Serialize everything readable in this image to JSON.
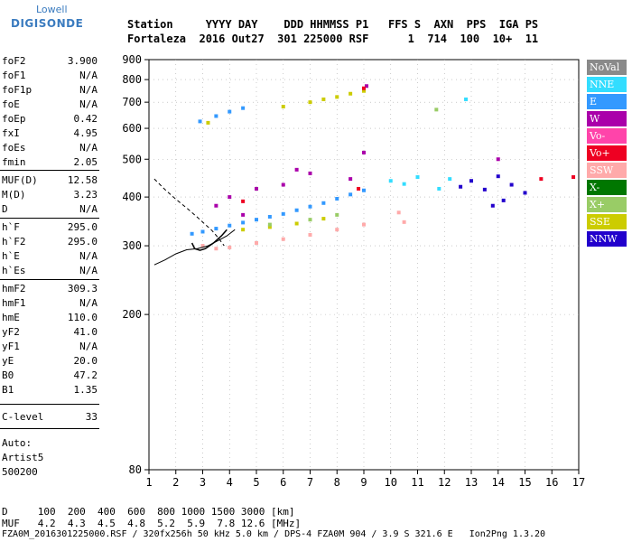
{
  "logo": {
    "top": "Lowell",
    "bottom": "DIGISONDE"
  },
  "header": {
    "line1": "Station     YYYY DAY    DDD HHMMSS P1   FFS S  AXN  PPS  IGA PS",
    "line2": "Fortaleza  2016 Out27  301 225000 RSF      1  714  100  10+  11"
  },
  "params": [
    {
      "k": "foF2",
      "v": "3.900"
    },
    {
      "k": "foF1",
      "v": "N/A"
    },
    {
      "k": "foF1p",
      "v": "N/A"
    },
    {
      "k": "foE",
      "v": "N/A"
    },
    {
      "k": "foEp",
      "v": "0.42"
    },
    {
      "k": "fxI",
      "v": "4.95"
    },
    {
      "k": "foEs",
      "v": "N/A"
    },
    {
      "k": "fmin",
      "v": "2.05"
    },
    {
      "k": "MUF(D)",
      "v": "12.58"
    },
    {
      "k": "M(D)",
      "v": "3.23"
    },
    {
      "k": "D",
      "v": "N/A"
    },
    {
      "k": "h`F",
      "v": "295.0"
    },
    {
      "k": "h`F2",
      "v": "295.0"
    },
    {
      "k": "h`E",
      "v": "N/A"
    },
    {
      "k": "h`Es",
      "v": "N/A"
    },
    {
      "k": "hmF2",
      "v": "309.3"
    },
    {
      "k": "hmF1",
      "v": "N/A"
    },
    {
      "k": "hmE",
      "v": "110.0"
    },
    {
      "k": "yF2",
      "v": "41.0"
    },
    {
      "k": "yF1",
      "v": "N/A"
    },
    {
      "k": "yE",
      "v": "20.0"
    },
    {
      "k": "B0",
      "v": "47.2"
    },
    {
      "k": "B1",
      "v": "1.35"
    },
    {
      "k": "C-level",
      "v": "33"
    }
  ],
  "auto": {
    "l1": "Auto:",
    "l2": "Artist5",
    "l3": "500200"
  },
  "legend": [
    {
      "label": "NoVal",
      "color": "#8a8a8a"
    },
    {
      "label": "NNE",
      "color": "#33ddff"
    },
    {
      "label": "E",
      "color": "#3399ff"
    },
    {
      "label": "W",
      "color": "#aa00aa"
    },
    {
      "label": "Vo-",
      "color": "#ff44aa"
    },
    {
      "label": "Vo+",
      "color": "#ee0022"
    },
    {
      "label": "SSW",
      "color": "#ffaaaa"
    },
    {
      "label": "X-",
      "color": "#007700"
    },
    {
      "label": "X+",
      "color": "#99cc66"
    },
    {
      "label": "SSE",
      "color": "#cccc00"
    },
    {
      "label": "NNW",
      "color": "#2200cc"
    }
  ],
  "footer": {
    "d_row": "D     100  200  400  600  800 1000 1500 3000 [km]",
    "muf_row": "MUF   4.2  4.3  4.5  4.8  5.2  5.9  7.8 12.6 [MHz]",
    "file_row": "FZA0M_2016301225000.RSF / 320fx256h 50 kHz 5.0 km / DPS-4 FZA0M 904 / 3.9 S 321.6 E   Ion2Png 1.3.20"
  },
  "chart_data": {
    "type": "scatter",
    "x_ticks": [
      "1",
      "2",
      "3",
      "4",
      "5",
      "6",
      "7",
      "8",
      "9",
      "10",
      "11",
      "12",
      "13",
      "14",
      "15",
      "16",
      "17"
    ],
    "y_ticks": [
      "80",
      "200",
      "300",
      "400",
      "500",
      "600",
      "700",
      "800",
      "900"
    ],
    "xlim": [
      1,
      17
    ],
    "ylim": [
      80,
      900
    ],
    "y_scale": "log",
    "grid": true,
    "series": [
      {
        "name": "E",
        "color": "#3399ff",
        "points": [
          [
            2.6,
            322
          ],
          [
            3.0,
            326
          ],
          [
            3.5,
            332
          ],
          [
            4.0,
            338
          ],
          [
            4.5,
            344
          ],
          [
            5.0,
            350
          ],
          [
            5.5,
            356
          ],
          [
            6.0,
            362
          ],
          [
            6.5,
            370
          ],
          [
            7.0,
            378
          ],
          [
            7.5,
            386
          ],
          [
            8.0,
            396
          ],
          [
            8.5,
            406
          ],
          [
            9.0,
            416
          ],
          [
            2.9,
            625
          ],
          [
            3.5,
            645
          ],
          [
            4.0,
            662
          ],
          [
            4.5,
            676
          ]
        ]
      },
      {
        "name": "SSE",
        "color": "#cccc00",
        "points": [
          [
            3.2,
            620
          ],
          [
            6.0,
            682
          ],
          [
            7.0,
            700
          ],
          [
            7.5,
            712
          ],
          [
            8.0,
            722
          ],
          [
            8.5,
            736
          ],
          [
            9.0,
            748
          ],
          [
            4.5,
            330
          ],
          [
            5.5,
            335
          ],
          [
            6.5,
            342
          ],
          [
            7.5,
            352
          ]
        ]
      },
      {
        "name": "W",
        "color": "#aa00aa",
        "points": [
          [
            3.5,
            380
          ],
          [
            4.0,
            400
          ],
          [
            4.5,
            360
          ],
          [
            5.0,
            420
          ],
          [
            6.0,
            430
          ],
          [
            6.5,
            470
          ],
          [
            7.0,
            460
          ],
          [
            8.5,
            445
          ],
          [
            9.0,
            520
          ],
          [
            9.1,
            770
          ],
          [
            14.0,
            500
          ]
        ]
      },
      {
        "name": "SSW",
        "color": "#ffaaaa",
        "points": [
          [
            3.0,
            300
          ],
          [
            3.5,
            295
          ],
          [
            4.0,
            297
          ],
          [
            5.0,
            305
          ],
          [
            6.0,
            312
          ],
          [
            7.0,
            320
          ],
          [
            8.0,
            330
          ],
          [
            9.0,
            340
          ],
          [
            10.3,
            365
          ],
          [
            10.5,
            345
          ]
        ]
      },
      {
        "name": "NNW",
        "color": "#2200cc",
        "points": [
          [
            12.6,
            425
          ],
          [
            13.0,
            440
          ],
          [
            13.5,
            418
          ],
          [
            14.0,
            452
          ],
          [
            14.5,
            430
          ],
          [
            15.0,
            410
          ],
          [
            13.8,
            380
          ],
          [
            14.2,
            392
          ]
        ]
      },
      {
        "name": "NNE",
        "color": "#33ddff",
        "points": [
          [
            10.0,
            440
          ],
          [
            10.5,
            432
          ],
          [
            11.0,
            450
          ],
          [
            11.8,
            420
          ],
          [
            12.2,
            445
          ],
          [
            12.8,
            712
          ]
        ]
      },
      {
        "name": "Vo+",
        "color": "#ee0022",
        "points": [
          [
            4.5,
            390
          ],
          [
            8.8,
            420
          ],
          [
            9.0,
            760
          ],
          [
            16.8,
            450
          ],
          [
            15.6,
            445
          ]
        ]
      },
      {
        "name": "X+",
        "color": "#99cc66",
        "points": [
          [
            5.5,
            340
          ],
          [
            7.0,
            350
          ],
          [
            8.0,
            360
          ],
          [
            11.7,
            670
          ]
        ]
      }
    ],
    "profile_upper": [
      [
        1.2,
        445
      ],
      [
        1.6,
        418
      ],
      [
        2.0,
        395
      ],
      [
        2.4,
        375
      ],
      [
        2.8,
        355
      ],
      [
        3.1,
        340
      ],
      [
        3.35,
        328
      ],
      [
        3.6,
        313
      ],
      [
        3.8,
        300
      ]
    ],
    "profile_lower": [
      [
        1.2,
        268
      ],
      [
        1.6,
        276
      ],
      [
        2.0,
        286
      ],
      [
        2.4,
        293
      ],
      [
        2.8,
        295
      ],
      [
        3.2,
        300
      ],
      [
        3.6,
        310
      ],
      [
        3.9,
        318
      ],
      [
        4.2,
        330
      ]
    ],
    "trace_curve": [
      [
        2.6,
        305
      ],
      [
        2.7,
        295
      ],
      [
        2.9,
        292
      ],
      [
        3.1,
        295
      ],
      [
        3.4,
        305
      ],
      [
        3.7,
        318
      ],
      [
        3.9,
        330
      ]
    ]
  }
}
